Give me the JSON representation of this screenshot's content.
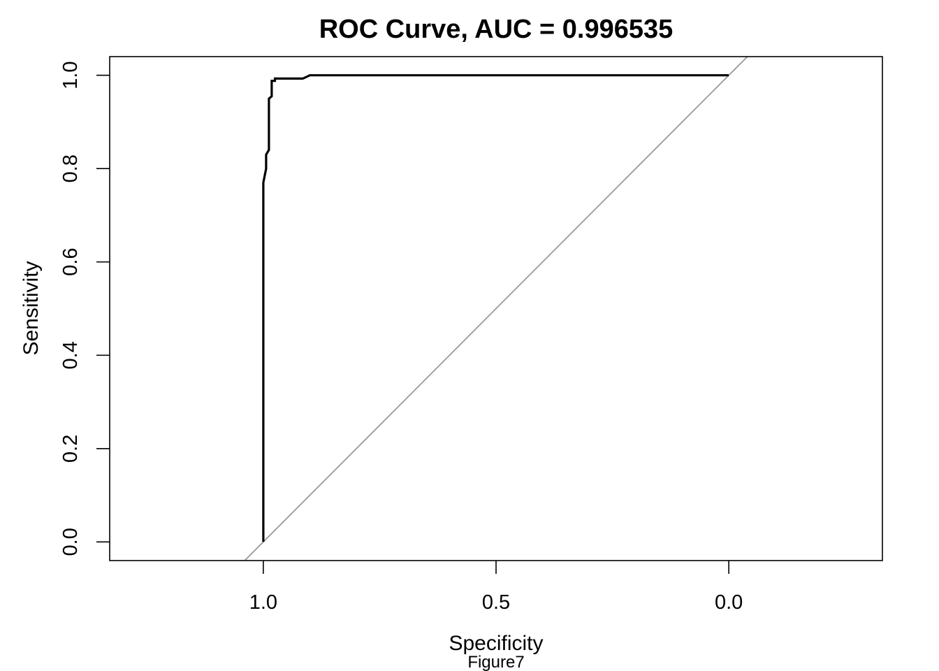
{
  "chart_data": {
    "type": "line",
    "title": "ROC Curve, AUC = 0.996535",
    "xlabel": "Specificity",
    "ylabel": "Sensitivity",
    "caption": "Figure7",
    "x_axis_reversed": true,
    "xlim": [
      1.33,
      -0.33
    ],
    "ylim": [
      -0.04,
      1.04
    ],
    "x_ticks": [
      1.0,
      0.5,
      0.0
    ],
    "x_tick_labels": [
      "1.0",
      "0.5",
      "0.0"
    ],
    "y_ticks": [
      0.0,
      0.2,
      0.4,
      0.6,
      0.8,
      1.0
    ],
    "y_tick_labels": [
      "0.0",
      "0.2",
      "0.4",
      "0.6",
      "0.8",
      "1.0"
    ],
    "grid": false,
    "series": [
      {
        "color": "#000000",
        "x": [
          1.0,
          1.0,
          0.994,
          0.994,
          0.988,
          0.988,
          0.982,
          0.982,
          0.975,
          0.975,
          0.955,
          0.955,
          0.915,
          0.9,
          0.0
        ],
        "y": [
          0.0,
          0.77,
          0.8,
          0.83,
          0.84,
          0.95,
          0.955,
          0.988,
          0.988,
          0.993,
          0.993,
          0.993,
          0.993,
          1.0,
          1.0
        ]
      }
    ],
    "reference_line": {
      "color": "#999999",
      "description": "diagonal",
      "x": [
        1.0,
        0.0
      ],
      "y": [
        0.0,
        1.0
      ]
    }
  }
}
